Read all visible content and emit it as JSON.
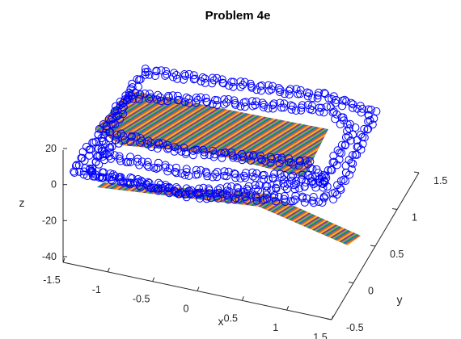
{
  "chart_data": {
    "type": "scatter3d",
    "title": "Problem 4e",
    "xlabel": "x",
    "ylabel": "y",
    "zlabel": "z",
    "xlim": [
      -1.5,
      1.5
    ],
    "ylim": [
      -0.5,
      1.5
    ],
    "zlim": [
      -45,
      25
    ],
    "x_ticks": [
      "-1.5",
      "-1",
      "-0.5",
      "0",
      "0.5",
      "1",
      "1.5"
    ],
    "y_ticks": [
      "-0.5",
      "0",
      "0.5",
      "1",
      "1.5"
    ],
    "z_ticks": [
      "-40",
      "-20",
      "0",
      "20"
    ],
    "grid": false,
    "series": [
      {
        "kind": "markers",
        "marker": "circle",
        "color": "#0000ff",
        "rings": [
          {
            "z": 10,
            "path": [
              [
                -1.3,
                -0.3
              ],
              [
                -1.1,
                1.3
              ],
              [
                1.1,
                1.3
              ],
              [
                1.3,
                -0.3
              ],
              [
                -1.3,
                -0.3
              ]
            ]
          },
          {
            "z": 5,
            "path": [
              [
                -1.0,
                -0.2
              ],
              [
                -0.9,
                1.0
              ],
              [
                1.0,
                1.0
              ],
              [
                1.1,
                -0.2
              ],
              [
                -1.0,
                -0.2
              ]
            ]
          },
          {
            "z": 0,
            "path": [
              [
                -0.9,
                -0.35
              ],
              [
                -0.8,
                0.9
              ],
              [
                0.95,
                0.9
              ],
              [
                1.05,
                -0.35
              ],
              [
                -0.9,
                -0.35
              ]
            ]
          }
        ]
      },
      {
        "kind": "surface",
        "colormap": "multicolor stripes",
        "sheets": [
          {
            "corners": [
              [
                -1.3,
                0.5,
                0
              ],
              [
                -0.9,
                1.1,
                2
              ],
              [
                0.8,
                1.0,
                2
              ],
              [
                1.0,
                0.2,
                0
              ]
            ]
          },
          {
            "corners": [
              [
                -1.3,
                -0.35,
                -1
              ],
              [
                0.7,
                -0.45,
                -1
              ],
              [
                1.5,
                -0.55,
                -30
              ],
              [
                1.45,
                -0.25,
                -30
              ]
            ]
          }
        ]
      }
    ]
  }
}
